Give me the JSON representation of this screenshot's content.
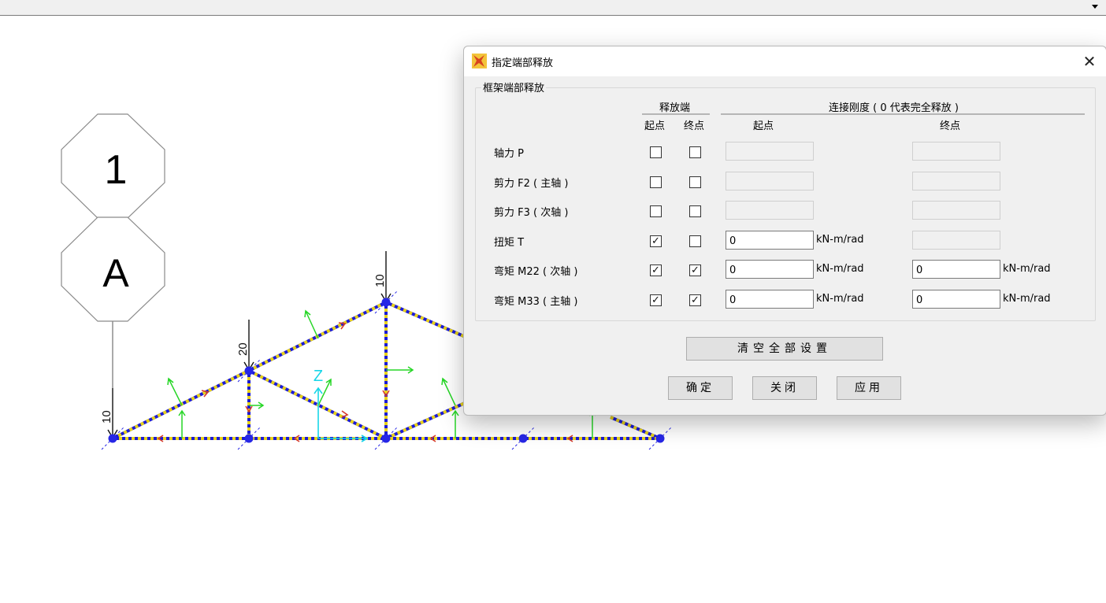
{
  "dialog": {
    "title": "指定端部释放",
    "group_label": "框架端部释放",
    "header_release": "释放端",
    "header_stiffness": "连接刚度 ( 0 代表完全释放 )",
    "col_start": "起点",
    "col_end": "终点",
    "col_stiff_start": "起点",
    "col_stiff_end": "终点",
    "rows": [
      {
        "label": "轴力 P",
        "start_checked": false,
        "end_checked": false,
        "start_value": "",
        "start_unit": "",
        "end_value": "",
        "end_unit": "",
        "start_enabled": false,
        "end_enabled": false
      },
      {
        "label": "剪力 F2 ( 主轴 )",
        "start_checked": false,
        "end_checked": false,
        "start_value": "",
        "start_unit": "",
        "end_value": "",
        "end_unit": "",
        "start_enabled": false,
        "end_enabled": false
      },
      {
        "label": "剪力 F3 ( 次轴 )",
        "start_checked": false,
        "end_checked": false,
        "start_value": "",
        "start_unit": "",
        "end_value": "",
        "end_unit": "",
        "start_enabled": false,
        "end_enabled": false
      },
      {
        "label": "扭矩 T",
        "start_checked": true,
        "end_checked": false,
        "start_value": "0",
        "start_unit": "kN-m/rad",
        "end_value": "",
        "end_unit": "",
        "start_enabled": true,
        "end_enabled": false
      },
      {
        "label": "弯矩 M22 ( 次轴 )",
        "start_checked": true,
        "end_checked": true,
        "start_value": "0",
        "start_unit": "kN-m/rad",
        "end_value": "0",
        "end_unit": "kN-m/rad",
        "start_enabled": true,
        "end_enabled": true
      },
      {
        "label": "弯矩 M33 ( 主轴 )",
        "start_checked": true,
        "end_checked": true,
        "start_value": "0",
        "start_unit": "kN-m/rad",
        "end_value": "0",
        "end_unit": "kN-m/rad",
        "start_enabled": true,
        "end_enabled": true
      }
    ],
    "clear_all_button": "清空全部设置",
    "ok_button": "确定",
    "close_button": "关闭",
    "apply_button": "应用"
  },
  "model_view": {
    "grid_number_label": "1",
    "grid_letter_label": "A",
    "load_labels": [
      "10",
      "20",
      "10"
    ],
    "axis_label": "Z"
  },
  "colors": {
    "member_blue": "#1b1bd6",
    "member_yellow": "#e8d21a",
    "member_red": "#d63b2c",
    "local_axis_green": "#26d626",
    "global_axis_cyan": "#18d6e8",
    "joint_blue": "#2727e6"
  }
}
